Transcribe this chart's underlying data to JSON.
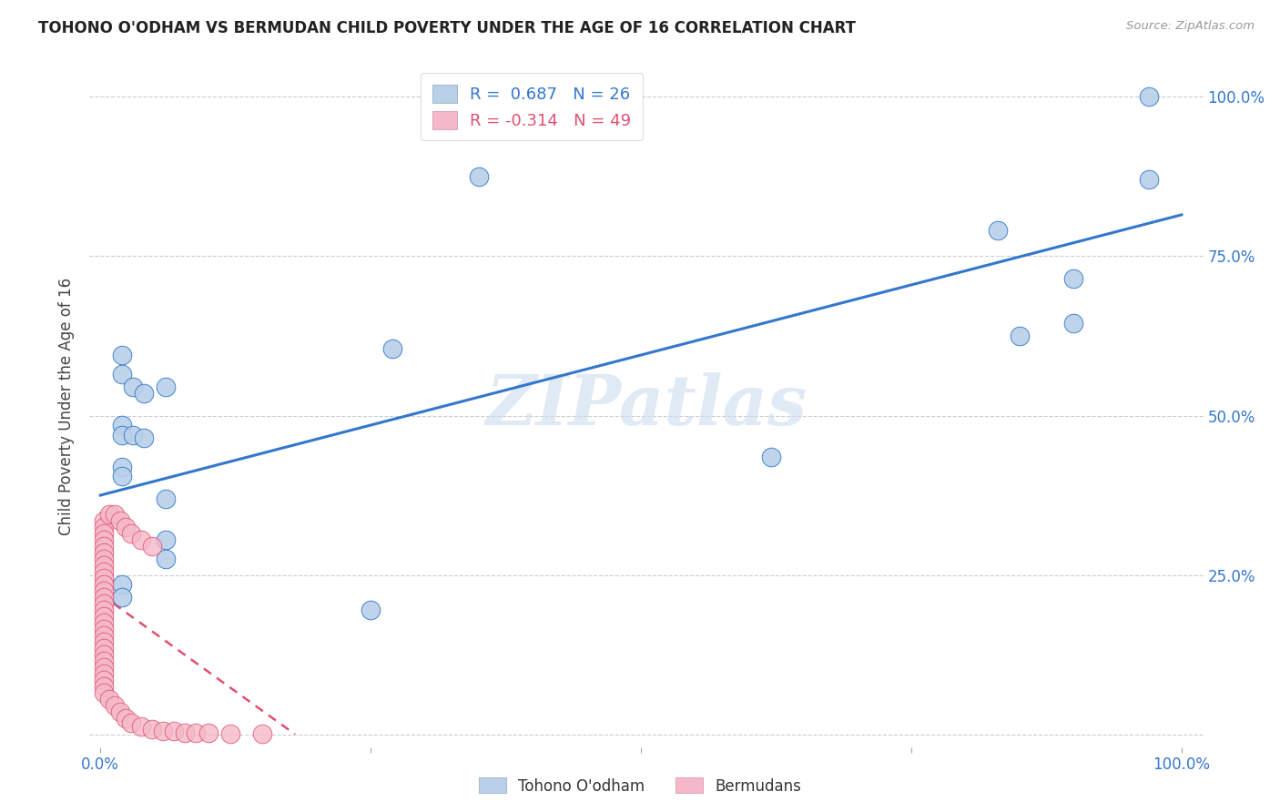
{
  "title": "TOHONO O'ODHAM VS BERMUDAN CHILD POVERTY UNDER THE AGE OF 16 CORRELATION CHART",
  "source": "Source: ZipAtlas.com",
  "ylabel": "Child Poverty Under the Age of 16",
  "xlim": [
    -0.01,
    1.02
  ],
  "ylim": [
    -0.02,
    1.05
  ],
  "legend_blue_label": "Tohono O'odham",
  "legend_pink_label": "Bermudans",
  "legend_blue_R": "R =  0.687",
  "legend_blue_N": "N = 26",
  "legend_pink_R": "R = -0.314",
  "legend_pink_N": "N = 49",
  "blue_color": "#b8d0e8",
  "pink_color": "#f5b8c8",
  "line_blue_color": "#3377cc",
  "line_pink_color": "#e05070",
  "watermark": "ZIPatlas",
  "blue_points": [
    [
      0.97,
      1.0
    ],
    [
      0.97,
      0.87
    ],
    [
      0.83,
      0.79
    ],
    [
      0.9,
      0.715
    ],
    [
      0.9,
      0.645
    ],
    [
      0.85,
      0.625
    ],
    [
      0.62,
      0.435
    ],
    [
      0.35,
      0.875
    ],
    [
      0.27,
      0.605
    ],
    [
      0.02,
      0.595
    ],
    [
      0.02,
      0.565
    ],
    [
      0.03,
      0.545
    ],
    [
      0.04,
      0.535
    ],
    [
      0.02,
      0.485
    ],
    [
      0.02,
      0.47
    ],
    [
      0.03,
      0.47
    ],
    [
      0.04,
      0.465
    ],
    [
      0.02,
      0.42
    ],
    [
      0.02,
      0.405
    ],
    [
      0.06,
      0.545
    ],
    [
      0.06,
      0.37
    ],
    [
      0.06,
      0.305
    ],
    [
      0.06,
      0.275
    ],
    [
      0.25,
      0.195
    ],
    [
      0.02,
      0.235
    ],
    [
      0.02,
      0.215
    ]
  ],
  "pink_points": [
    [
      0.003,
      0.335
    ],
    [
      0.003,
      0.325
    ],
    [
      0.003,
      0.315
    ],
    [
      0.003,
      0.305
    ],
    [
      0.003,
      0.295
    ],
    [
      0.003,
      0.285
    ],
    [
      0.003,
      0.275
    ],
    [
      0.003,
      0.265
    ],
    [
      0.003,
      0.255
    ],
    [
      0.003,
      0.245
    ],
    [
      0.003,
      0.235
    ],
    [
      0.003,
      0.225
    ],
    [
      0.003,
      0.215
    ],
    [
      0.003,
      0.205
    ],
    [
      0.003,
      0.195
    ],
    [
      0.003,
      0.185
    ],
    [
      0.003,
      0.175
    ],
    [
      0.003,
      0.165
    ],
    [
      0.003,
      0.155
    ],
    [
      0.003,
      0.145
    ],
    [
      0.003,
      0.135
    ],
    [
      0.003,
      0.125
    ],
    [
      0.003,
      0.115
    ],
    [
      0.003,
      0.105
    ],
    [
      0.003,
      0.095
    ],
    [
      0.003,
      0.085
    ],
    [
      0.003,
      0.075
    ],
    [
      0.003,
      0.065
    ],
    [
      0.008,
      0.345
    ],
    [
      0.008,
      0.055
    ],
    [
      0.013,
      0.345
    ],
    [
      0.013,
      0.045
    ],
    [
      0.018,
      0.035
    ],
    [
      0.018,
      0.335
    ],
    [
      0.023,
      0.325
    ],
    [
      0.023,
      0.025
    ],
    [
      0.028,
      0.315
    ],
    [
      0.028,
      0.018
    ],
    [
      0.038,
      0.012
    ],
    [
      0.038,
      0.305
    ],
    [
      0.048,
      0.008
    ],
    [
      0.048,
      0.295
    ],
    [
      0.058,
      0.005
    ],
    [
      0.068,
      0.005
    ],
    [
      0.078,
      0.003
    ],
    [
      0.088,
      0.003
    ],
    [
      0.1,
      0.002
    ],
    [
      0.12,
      0.001
    ],
    [
      0.15,
      0.001
    ]
  ],
  "blue_trendline": [
    [
      0.0,
      0.375
    ],
    [
      1.0,
      0.815
    ]
  ],
  "pink_trendline": [
    [
      0.0,
      0.22
    ],
    [
      0.18,
      0.0
    ]
  ]
}
